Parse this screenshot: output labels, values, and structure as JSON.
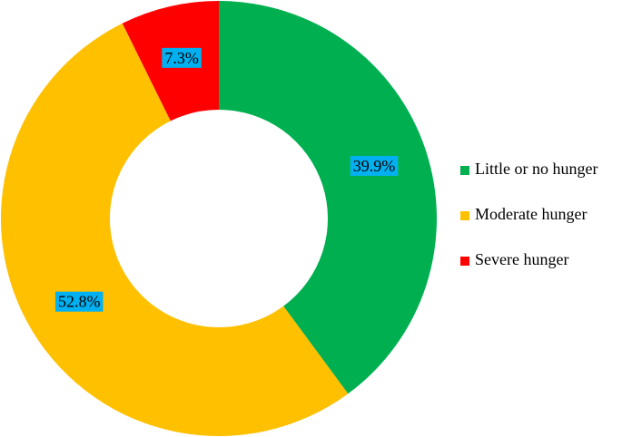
{
  "chart_data": {
    "type": "donut",
    "categories": [
      "Little or no hunger",
      "Moderate hunger",
      "Severe hunger"
    ],
    "values": [
      39.9,
      52.8,
      7.3
    ],
    "value_labels": [
      "39.9%",
      "52.8%",
      "7.3%"
    ],
    "colors": [
      "#00b050",
      "#ffc000",
      "#ff0000"
    ],
    "label_background": "#00b0f0",
    "legend": "right"
  }
}
